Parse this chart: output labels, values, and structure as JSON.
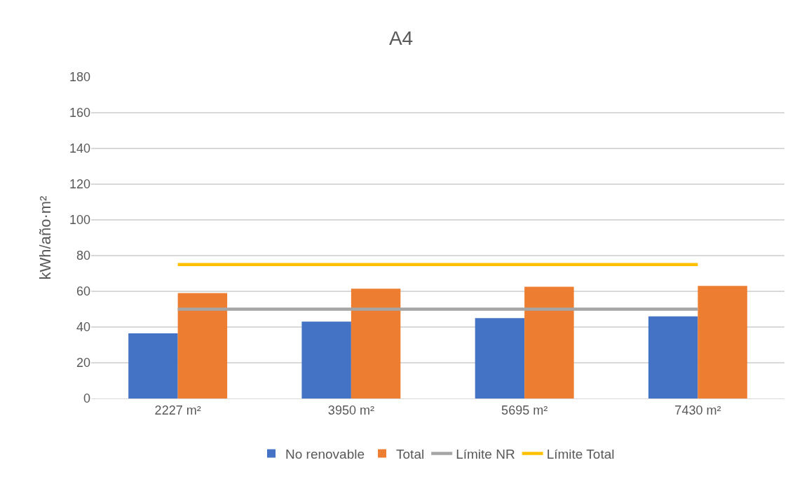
{
  "chart_data": {
    "type": "bar",
    "title": "A4",
    "ylabel": "kWh/año·m²",
    "categories": [
      "2227 m²",
      "3950 m²",
      "5695 m²",
      "7430 m²"
    ],
    "series": [
      {
        "name": "No renovable",
        "color": "#4472c4",
        "values": [
          36.5,
          43,
          45,
          46
        ]
      },
      {
        "name": "Total",
        "color": "#ed7d31",
        "values": [
          59,
          61.5,
          62.5,
          63
        ]
      },
      {
        "name": "Límite NR",
        "type": "line",
        "color": "#a5a5a5",
        "values": [
          50,
          50,
          50,
          50
        ]
      },
      {
        "name": "Límite Total",
        "type": "line",
        "color": "#ffc000",
        "values": [
          75,
          75,
          75,
          75
        ]
      }
    ],
    "ylim": [
      0,
      180
    ],
    "yticks": [
      0,
      20,
      40,
      60,
      80,
      100,
      120,
      140,
      160,
      180
    ],
    "grid": "y",
    "legend": "bottom",
    "marker": "none",
    "line_style": "solid"
  }
}
